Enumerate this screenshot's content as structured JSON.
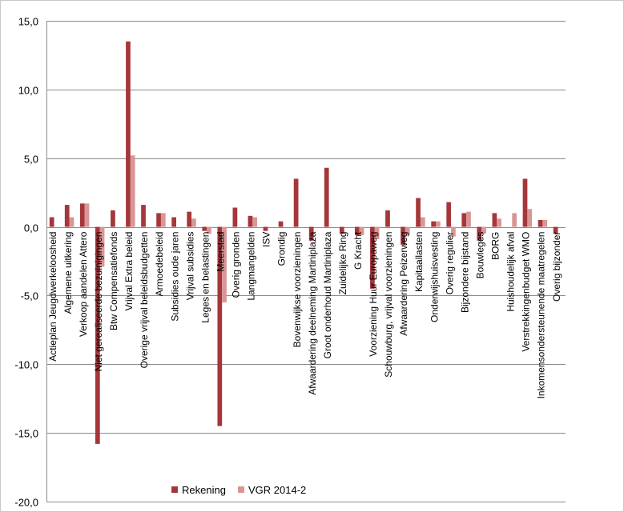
{
  "chart_data": {
    "type": "bar",
    "title": "",
    "xlabel": "",
    "ylabel": "",
    "ylim": [
      -20,
      15
    ],
    "yticks": [
      15,
      10,
      5,
      0,
      -5,
      -10,
      -15,
      -20
    ],
    "ytick_labels": [
      "15,0",
      "10,0",
      "5,0",
      "0,0",
      "-5,0",
      "-10,0",
      "-15,0",
      "-20,0"
    ],
    "grid": "horizontal",
    "legend_position": "bottom",
    "categories": [
      "Actieplan Jeugdwerkeloosheid",
      "Algemene uitkering",
      "Verkoop aandelen Attero",
      "Niet gerealiseerde bezuinigingen",
      "Btw Compensatiefonds",
      "Vrijval Extra beleid",
      "Overige vrijval beleidsbudgetten",
      "Armoedebeleid",
      "Subsidies oude jaren",
      "Vrijval subsidies",
      "Leges en belastingen",
      "Meerstad",
      "Overig gronden",
      "Langmangelden",
      "ISV",
      "Grondig",
      "Bovenwijkse voorzieningen",
      "Afwaardering deelneming Martiniplaza",
      "Groot onderhoud Martiniplaza",
      "Zuidelijke Ring",
      "G Kracht",
      "Voorziening Huur Europaweg",
      "Schouwburg, vrijval voorzieningen",
      "Afwaardering Peizerweg",
      "Kapitaallasten",
      "Onderwijshuisvesting",
      "Overig regulier",
      "Bijzondere bijstand",
      "Bouwleges",
      "BORG",
      "Huishoudelijk afval",
      "Verstrekkingenbudget WMO",
      "Inkomensondersteunende maatregelen",
      "Overig bijzonder"
    ],
    "series": [
      {
        "name": "Rekening",
        "color": "#a5363a",
        "values": [
          0.7,
          1.6,
          1.7,
          -15.8,
          1.2,
          13.5,
          1.6,
          1.0,
          0.7,
          1.1,
          -0.3,
          -14.5,
          1.4,
          0.8,
          -0.3,
          0.4,
          3.5,
          -1.0,
          4.3,
          -0.5,
          -0.6,
          -4.5,
          1.2,
          -1.3,
          2.1,
          0.4,
          1.8,
          1.0,
          -1.0,
          1.0,
          0.0,
          3.5,
          0.5,
          -0.5
        ]
      },
      {
        "name": "VGR 2014-2",
        "color": "#d99694",
        "values": [
          0.0,
          0.7,
          1.7,
          -2.9,
          0.0,
          5.2,
          0.0,
          1.0,
          0.0,
          0.6,
          -0.5,
          -5.5,
          0.0,
          0.7,
          0.0,
          0.0,
          0.0,
          0.0,
          0.0,
          0.0,
          -0.6,
          -0.9,
          0.0,
          -0.6,
          0.7,
          0.4,
          -0.7,
          1.1,
          -0.5,
          0.6,
          1.0,
          1.3,
          0.5,
          0.0
        ]
      }
    ]
  }
}
